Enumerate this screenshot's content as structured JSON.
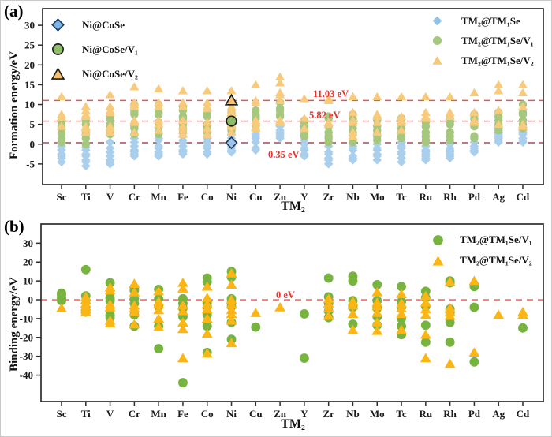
{
  "figure": {
    "panel_a_label": "(a)",
    "panel_b_label": "(b)"
  },
  "chart_data": [
    {
      "id": "a",
      "type": "scatter",
      "title": "",
      "ylabel": "Formation energy/eV",
      "xlabel": "TM₂",
      "ylim": [
        -10.2,
        34.2
      ],
      "yticks": [
        30,
        25,
        20,
        15,
        10,
        5,
        0,
        -5
      ],
      "grid": false,
      "legend_position": "top-left and top-right, inside axes",
      "categories": [
        "Sc",
        "Ti",
        "V",
        "Cr",
        "Mn",
        "Fe",
        "Co",
        "Ni",
        "Cu",
        "Zn",
        "Y",
        "Zr",
        "Nb",
        "Mo",
        "Tc",
        "Ru",
        "Rh",
        "Pd",
        "Ag",
        "Cd"
      ],
      "series": [
        {
          "name": "TM₂@TM₁Se",
          "marker": "diamond",
          "color": "#a9cfec",
          "values_by_category": [
            [
              -4.5,
              -3.5,
              -3,
              -2.5,
              -1.5,
              -0.5,
              0.3
            ],
            [
              -5.5,
              -4.5,
              -4,
              -3,
              -2.5,
              -1.5,
              -0.8
            ],
            [
              -5,
              -4.5,
              -4,
              -3,
              -2,
              -1,
              0.5
            ],
            [
              -3,
              -2.5,
              -2,
              -1.5,
              -0.5,
              0.5,
              1.5,
              2.5
            ],
            [
              -3,
              -2.5,
              -2,
              -1,
              -0.5,
              1,
              1.5
            ],
            [
              -2.5,
              -2,
              -1.5,
              -0.5,
              0.5,
              1,
              2
            ],
            [
              -2.5,
              -2,
              -1,
              -0.5,
              0.5,
              1.5,
              2
            ],
            [
              -2,
              -1.5,
              -1,
              -0.5,
              1,
              1.5,
              2.5
            ],
            [
              -1.5,
              -1,
              0.5,
              1.5,
              2,
              2.5,
              3.5
            ],
            [
              1.5,
              2,
              2.5,
              3,
              3.5,
              4.5,
              5
            ],
            [
              -3,
              -2.5,
              -1.5,
              -1,
              0,
              1,
              2
            ],
            [
              -5,
              -4,
              -3.5,
              -2.5,
              -2,
              -0.5
            ],
            [
              -4,
              -3.5,
              -3,
              -1.5,
              -1,
              -0.5
            ],
            [
              -4,
              -3,
              -2.5,
              -1.5,
              -1,
              0
            ],
            [
              -4.5,
              -3.5,
              -2.5,
              -2,
              -1,
              -0.5,
              0.5
            ],
            [
              -4,
              -3.5,
              -3,
              -2.5,
              -2,
              -1.5,
              -0.5
            ],
            [
              -3.5,
              -3,
              -2.5,
              -2,
              -1.5,
              -1,
              0
            ],
            [
              -2,
              -1.5,
              -1,
              -0.5,
              0.5
            ],
            [
              0.5,
              1,
              1.5,
              2,
              2.5,
              3,
              4
            ],
            [
              0.5,
              1,
              1.5,
              2.5,
              3,
              3.5
            ]
          ]
        },
        {
          "name": "TM₂@TM₁Se/V₁",
          "marker": "circle",
          "color": "#a6c77e",
          "values_by_category": [
            [
              0.5,
              1.5,
              2.5,
              3,
              4,
              4.5,
              5.5,
              6
            ],
            [
              0,
              1.5,
              2.5,
              3.5,
              5,
              6,
              6.5
            ],
            [
              2.5,
              3.5,
              4.5,
              5,
              6.5,
              7
            ],
            [
              2.5,
              4,
              4.5,
              5,
              7.5,
              8,
              8.5,
              10
            ],
            [
              2.5,
              3,
              4.5,
              5.5,
              7.5,
              8,
              10
            ],
            [
              3,
              4,
              5,
              6.5,
              7,
              8.5,
              9.5
            ],
            [
              3,
              3.5,
              4.5,
              5,
              7,
              7.5,
              8.5
            ],
            [
              3.5,
              4,
              4.5,
              6.5,
              7,
              8
            ],
            [
              4.5,
              5,
              6.5,
              7,
              7.5,
              8.5
            ],
            [
              7,
              7.5,
              8.5,
              9,
              10.5
            ],
            [
              2,
              2.5,
              3.5,
              4.5,
              5.5,
              6
            ],
            [
              0.5,
              1.5,
              2,
              3,
              4.5,
              6.5,
              7
            ],
            [
              0.5,
              1,
              2.5,
              3,
              4,
              5.5,
              6.5,
              7.5
            ],
            [
              1,
              2,
              2.5,
              3.5,
              4.5,
              6,
              6.5
            ],
            [
              1.5,
              2,
              3,
              4,
              5,
              6.5
            ],
            [
              0.5,
              1,
              2,
              3,
              4.5,
              5.5,
              6
            ],
            [
              1,
              2,
              3,
              5,
              5.5,
              6.5
            ],
            [
              1.5,
              2,
              4.5,
              5,
              6.5,
              7.5
            ],
            [
              3.5,
              4.5,
              5,
              6,
              7,
              8
            ],
            [
              4,
              5,
              6,
              7.5,
              8,
              10
            ]
          ]
        },
        {
          "name": "TM₂@TM₁Se/V₂",
          "marker": "triangle",
          "color": "#f8ca7b",
          "values_by_category": [
            [
              4.5,
              6.8,
              7.5,
              12
            ],
            [
              3,
              4,
              4.5,
              7,
              7.5,
              8.5,
              9.5
            ],
            [
              3,
              4,
              4.5,
              8,
              8.5,
              9.5,
              12.5
            ],
            [
              3,
              5.5,
              6,
              9.5,
              10,
              10.5,
              14.5
            ],
            [
              3.5,
              5,
              6,
              9.5,
              10.5,
              14
            ],
            [
              2.5,
              3.5,
              4.5,
              6,
              9.5,
              10.5,
              13.5
            ],
            [
              2.5,
              4,
              5.5,
              9,
              9.5,
              10.5,
              13.5
            ],
            [
              3,
              4.5,
              5,
              8,
              8.5,
              9.5,
              13.5
            ],
            [
              4,
              4.5,
              5.5,
              6,
              10.5,
              11,
              15
            ],
            [
              5.5,
              6,
              11,
              12.5,
              13,
              15.5,
              17
            ],
            [
              4,
              6.5,
              11.5
            ],
            [
              5,
              5.5,
              11,
              11.5
            ],
            [
              2,
              3,
              5.5,
              6,
              8,
              12
            ],
            [
              3,
              5.5,
              7,
              7.5,
              12
            ],
            [
              3.5,
              5.5,
              6,
              7,
              12
            ],
            [
              6.5,
              7,
              8,
              12
            ],
            [
              7,
              8,
              12
            ],
            [
              5.5,
              6,
              8,
              13
            ],
            [
              5,
              8.5,
              13.5,
              15
            ],
            [
              4.5,
              5,
              9.5,
              13,
              15
            ]
          ]
        }
      ],
      "highlights": [
        {
          "name": "Ni@CoSe",
          "x": "Ni",
          "y": 0.35,
          "marker": "diamond",
          "color": "#9fc4e8",
          "outline": "#17375e"
        },
        {
          "name": "Ni@CoSe/V₁",
          "x": "Ni",
          "y": 5.82,
          "marker": "circle",
          "color": "#8fbc66",
          "outline": "#1a1a1a"
        },
        {
          "name": "Ni@CoSe/V₂",
          "x": "Ni",
          "y": 11.03,
          "marker": "triangle",
          "color": "#f5c170",
          "outline": "#1a1a1a"
        }
      ],
      "hlines": [
        {
          "y": 11.03,
          "label": "11.03 eV",
          "color": "#f4504f",
          "label_color": "#e8332e"
        },
        {
          "y": 5.82,
          "label": "5.82 eV",
          "color": "#f4504f",
          "label_color": "#e8332e"
        },
        {
          "y": 0.35,
          "label": "0.35 eV",
          "color": "#a94a54",
          "label_color": "#e8332e"
        }
      ],
      "legend_left": [
        {
          "label": "Ni@CoSe",
          "marker": "diamond",
          "color": "#7fb2e5",
          "outline": "#17375e"
        },
        {
          "label": "Ni@CoSe/V₁",
          "marker": "circle",
          "color": "#8fbc66",
          "outline": "#1a1a1a"
        },
        {
          "label": "Ni@CoSe/V₂",
          "marker": "triangle",
          "color": "#f5c170",
          "outline": "#1a1a1a"
        }
      ],
      "legend_right": [
        {
          "label": "TM₂@TM₁Se",
          "marker": "diamond",
          "color": "#8ec4ea",
          "outline": "none"
        },
        {
          "label": "TM₂@TM₁Se/V₁",
          "marker": "circle",
          "color": "#a4c87d",
          "outline": "none"
        },
        {
          "label": "TM₂@TM₁Se/V₂",
          "marker": "triangle",
          "color": "#f7c877",
          "outline": "none"
        }
      ]
    },
    {
      "id": "b",
      "type": "scatter",
      "title": "",
      "ylabel": "Binding energy/eV",
      "xlabel": "TM₂",
      "ylim": [
        -54,
        40.2
      ],
      "yticks": [
        30,
        20,
        10,
        0,
        -10,
        -20,
        -30,
        -40
      ],
      "grid": false,
      "legend_position": "top-right, inside axes",
      "categories": [
        "Sc",
        "Ti",
        "V",
        "Cr",
        "Mn",
        "Fe",
        "Co",
        "Ni",
        "Cu",
        "Zn",
        "Y",
        "Zr",
        "Nb",
        "Mo",
        "Tc",
        "Ru",
        "Rh",
        "Pd",
        "Ag",
        "Cd"
      ],
      "series": [
        {
          "name": "TM₂@TM₁Se/V₁",
          "marker": "circle",
          "color": "#76b33f",
          "values_by_category": [
            [
              3.5,
              2.5,
              1,
              -0.5
            ],
            [
              16,
              2,
              -6.5
            ],
            [
              9,
              1,
              -0.5,
              -8,
              -9.5
            ],
            [
              6.5,
              5,
              0.5,
              -2,
              -8,
              -14
            ],
            [
              5.5,
              0.5,
              -3.5,
              -14,
              -26
            ],
            [
              0.5,
              -2,
              -4.5,
              -9,
              -44
            ],
            [
              11.5,
              9.5,
              -1.5,
              -3.5,
              -8,
              -14,
              -28
            ],
            [
              15,
              12,
              0.5,
              -1.5,
              -3.5,
              -12,
              -21
            ],
            [
              -14.5
            ],
            [],
            [
              -7.5,
              -31
            ],
            [
              11.5,
              1.5,
              -2,
              -6,
              -9.5
            ],
            [
              12.5,
              10,
              -0.5,
              -4,
              -13
            ],
            [
              8,
              -0.5,
              -4.5,
              -9,
              -13.5
            ],
            [
              7,
              -1,
              -4,
              -10,
              -14,
              -18.5
            ],
            [
              4.5,
              1,
              -3.5,
              -13.5,
              -22.5
            ],
            [
              10,
              9,
              -5,
              -7,
              -12,
              -22.5
            ],
            [
              7,
              -4,
              -33
            ],
            [],
            [
              -15
            ]
          ]
        },
        {
          "name": "TM₂@TM₁Se/V₂",
          "marker": "triangle",
          "color": "#fbb616",
          "values_by_category": [
            [
              -4.5
            ],
            [
              1.5,
              0,
              -2,
              -3.5,
              -5,
              -6.5
            ],
            [
              6.5,
              5,
              -2.5,
              -4,
              -11,
              -12.5
            ],
            [
              8.5,
              4,
              -3,
              -4.5,
              -6.5,
              -13
            ],
            [
              4.5,
              -1,
              -2.5,
              -5.5,
              -10,
              -14.5
            ],
            [
              9,
              6,
              -3,
              -6,
              -12,
              -15.5,
              -31
            ],
            [
              7,
              1,
              -2.5,
              -5,
              -10,
              -18,
              -28.5
            ],
            [
              14,
              8,
              0,
              -2.5,
              -5.5,
              -7.5,
              -11,
              -23
            ],
            [
              -7
            ],
            [
              -4
            ],
            [],
            [
              0.5,
              -2,
              -4.5,
              -8.5
            ],
            [
              -1,
              -3,
              -7.5,
              -16
            ],
            [
              4,
              -1.5,
              -3.5,
              -7,
              -12,
              -16.5
            ],
            [
              3,
              -2,
              -4.5,
              -7.5,
              -16
            ],
            [
              2,
              -1.5,
              -5,
              -8,
              -18.5,
              -31
            ],
            [
              9.5,
              -4.5,
              -6.5,
              -8.5,
              -34
            ],
            [
              10,
              -28
            ],
            [
              -8
            ],
            [
              -6.5,
              -8
            ]
          ]
        }
      ],
      "highlights": [],
      "hlines": [
        {
          "y": 0,
          "label": "0 eV",
          "color": "#f4504f",
          "label_color": "#e8332e"
        }
      ],
      "legend_right": [
        {
          "label": "TM₂@TM₁Se/V₁",
          "marker": "circle",
          "color": "#76b33f",
          "outline": "none"
        },
        {
          "label": "TM₂@TM₁Se/V₂",
          "marker": "triangle",
          "color": "#fbb616",
          "outline": "none"
        }
      ]
    }
  ]
}
